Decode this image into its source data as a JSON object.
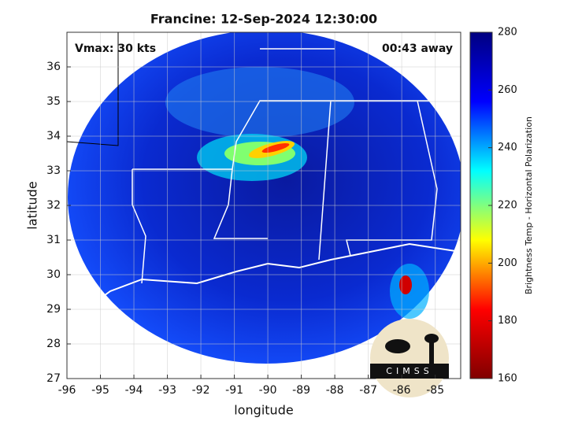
{
  "chart_data": {
    "type": "map",
    "title": "Francine: 12-Sep-2024 12:30:00",
    "xlabel": "longitude",
    "ylabel": "latitude",
    "xlim": [
      -96,
      -84.24
    ],
    "ylim": [
      27,
      37
    ],
    "xticks": [
      -96,
      -95,
      -94,
      -93,
      -92,
      -91,
      -90,
      -89,
      -88,
      -87,
      -86,
      -85
    ],
    "yticks": [
      27,
      28,
      29,
      30,
      31,
      32,
      33,
      34,
      35,
      36
    ],
    "grid": true,
    "annotations": [
      "Vmax: 30 kts",
      "00:43 away"
    ],
    "logo_text": "CIMSS",
    "colorbar": {
      "label": "Brightness Temp - Horizontal Polarization",
      "clim": [
        160,
        280
      ],
      "ticks": [
        160,
        180,
        200,
        220,
        240,
        260,
        280
      ],
      "colormap": [
        "#800000",
        "#ff0000",
        "#ffff00",
        "#00ffff",
        "#0000ff",
        "#000080"
      ]
    }
  }
}
